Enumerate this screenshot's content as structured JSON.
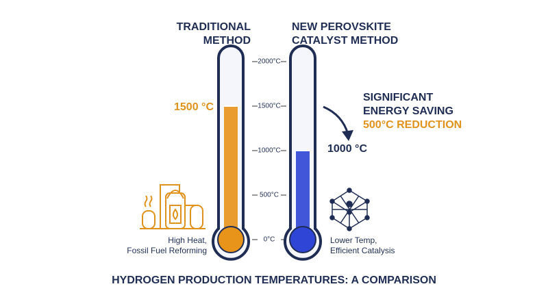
{
  "chart_data": {
    "type": "thermometer",
    "title": "HYDROGEN PRODUCTION TEMPERATURES: A COMPARISON",
    "categories": [
      [
        "TRADITIONAL",
        "METHOD"
      ],
      [
        "NEW PEROVSKITE",
        "CATALYST METHOD"
      ]
    ],
    "values": [
      1500,
      1000
    ],
    "value_labels": [
      "1500 °C",
      "1000 °C"
    ],
    "colors": [
      "#e8941a",
      "#2f45d6"
    ],
    "label_colors": [
      "#e0921c",
      "#1f2d55"
    ],
    "captions": [
      [
        "High Heat,",
        "Fossil Fuel Reforming"
      ],
      [
        "Lower Temp,",
        "Efficient Catalysis"
      ]
    ],
    "annotation": [
      "SIGNIFICANT",
      "ENERGY SAVING"
    ],
    "annotation_highlight": "500°C REDUCTION",
    "ylim": [
      0,
      2000
    ],
    "yticks": [
      {
        "value": 0,
        "label": "0°C"
      },
      {
        "value": 500,
        "label": "500°C"
      },
      {
        "value": 1000,
        "label": "1000°C"
      },
      {
        "value": 1500,
        "label": "1500°C"
      },
      {
        "value": 2000,
        "label": "2000°C"
      }
    ]
  }
}
